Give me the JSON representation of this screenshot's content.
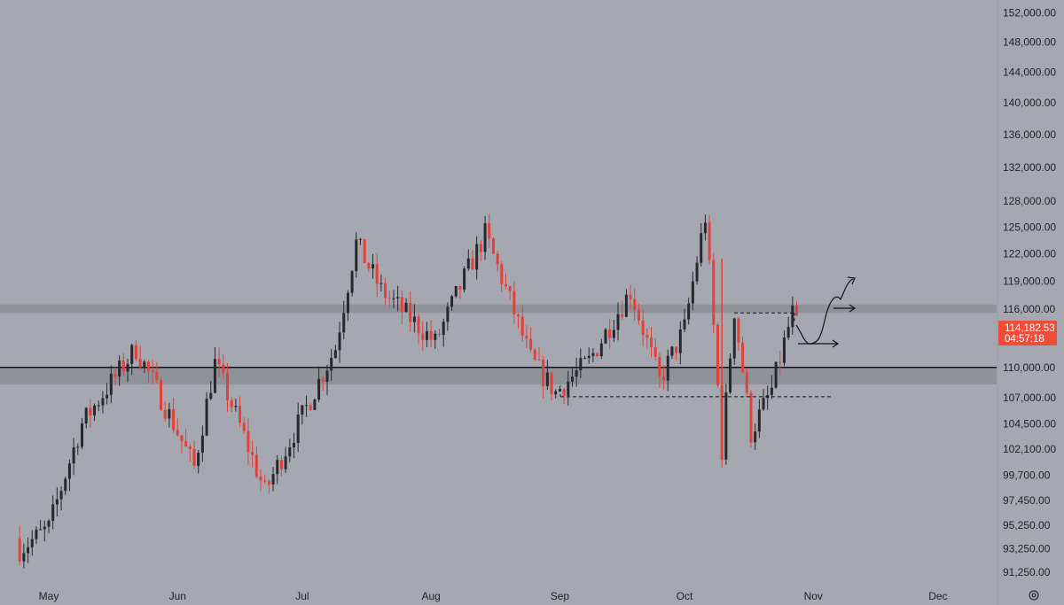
{
  "chart_data": {
    "type": "candlestick",
    "symbol_context": "price chart with daily candles",
    "ylim": [
      90000,
      154000
    ],
    "y_ticks": [
      "152,000.00",
      "148,000.00",
      "144,000.00",
      "140,000.00",
      "136,000.00",
      "132,000.00",
      "128,000.00",
      "125,000.00",
      "122,000.00",
      "119,000.00",
      "116,000.00",
      "110,000.00",
      "107,000.00",
      "104,500.00",
      "102,100.00",
      "99,700.00",
      "97,450.00",
      "95,250.00",
      "93,250.00",
      "91,250.00"
    ],
    "x_ticks": [
      "May",
      "Jun",
      "Jul",
      "Aug",
      "Sep",
      "Oct",
      "Nov",
      "Dec"
    ],
    "grid": false,
    "scale": "log",
    "current_price": {
      "label": "114,182.53",
      "countdown": "04:57:18",
      "value": 114182.53
    },
    "zones": [
      {
        "name": "resistance-zone",
        "top": 116500,
        "bottom": 115600
      },
      {
        "name": "support-zone",
        "top": 110000,
        "bottom": 108300
      }
    ],
    "horizontal_lines": [
      {
        "name": "support-line",
        "value": 110000
      }
    ],
    "dashed_levels": [
      {
        "name": "range-high",
        "value": 115600,
        "x_from": 828,
        "x_to": 896
      },
      {
        "name": "range-low",
        "value": 107100,
        "x_from": 632,
        "x_to": 938
      }
    ],
    "anchors": [
      {
        "date": "2025-04-24",
        "low": 93200
      },
      {
        "date": "2025-05-01",
        "low": 95000
      },
      {
        "date": "2025-05-09",
        "high": 104500
      },
      {
        "date": "2025-05-22",
        "high": 111900
      },
      {
        "date": "2025-06-05",
        "low": 100400
      },
      {
        "date": "2025-06-10",
        "high": 110400
      },
      {
        "date": "2025-06-22",
        "low": 98200
      },
      {
        "date": "2025-07-01",
        "low": 105200
      },
      {
        "date": "2025-07-09",
        "high": 112000
      },
      {
        "date": "2025-07-14",
        "high": 123200
      },
      {
        "date": "2025-07-20",
        "high": 118000
      },
      {
        "date": "2025-08-02",
        "low": 112500
      },
      {
        "date": "2025-08-14",
        "high": 124200
      },
      {
        "date": "2025-08-25",
        "low": 110800
      },
      {
        "date": "2025-08-31",
        "low": 107500
      },
      {
        "date": "2025-09-08",
        "low": 110600
      },
      {
        "date": "2025-09-18",
        "high": 117900
      },
      {
        "date": "2025-09-25",
        "low": 108600
      },
      {
        "date": "2025-10-01",
        "low": 114000
      },
      {
        "date": "2025-10-06",
        "high": 126200
      },
      {
        "date": "2025-10-10",
        "low": 102000
      },
      {
        "date": "2025-10-13",
        "high": 115900
      },
      {
        "date": "2025-10-17",
        "low": 103600
      },
      {
        "date": "2025-10-22",
        "low": 107800
      },
      {
        "date": "2025-10-27",
        "high": 115600
      },
      {
        "date": "2025-10-28",
        "close": 114182.53
      }
    ],
    "colors": {
      "up": "#26282c",
      "down": "#e0423a",
      "badge": "#ef4d3a",
      "zone": "#8c8e96"
    }
  },
  "ui": {
    "settings_icon": "gear-icon"
  }
}
